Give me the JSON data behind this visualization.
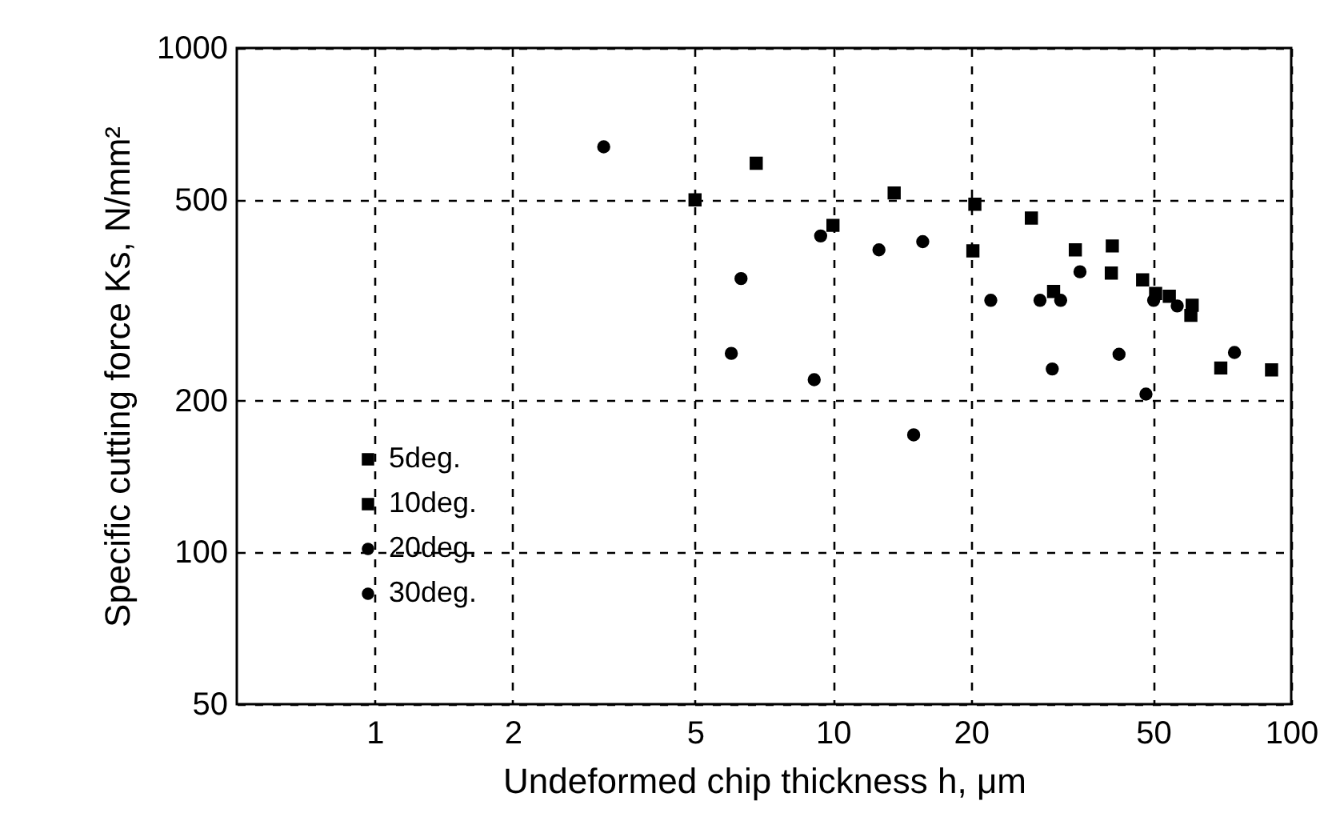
{
  "chart_data": {
    "type": "scatter",
    "xlabel": "Undeformed chip thickness  h, μm",
    "ylabel": "Specific cutting force  Ks, N/mm²",
    "log": "xy",
    "xlim": [
      0.5,
      100
    ],
    "ylim": [
      50,
      1000
    ],
    "xticks": [
      1,
      2,
      5,
      10,
      20,
      50,
      100
    ],
    "yticks": [
      50,
      100,
      200,
      500,
      1000
    ],
    "grid": true,
    "legend": "bottom left",
    "series": [
      {
        "name": "5deg.",
        "color": "#000000",
        "marker": "square",
        "x": [
          6.8,
          13.6,
          20.4,
          27.1,
          33.8,
          40.7,
          47.4,
          54.2,
          60.8
        ],
        "values": [
          591,
          516,
          490,
          460,
          398,
          405,
          347,
          322,
          309
        ]
      },
      {
        "name": "10deg.",
        "color": "#000000",
        "marker": "square",
        "x": [
          5,
          10,
          20.2,
          30.3,
          40.5,
          50.6,
          60.4,
          70.2,
          90.6
        ],
        "values": [
          500,
          445,
          396,
          329,
          358,
          326,
          295,
          232,
          230
        ]
      },
      {
        "name": "20deg.",
        "color": "#000000",
        "marker": "circle",
        "x": [
          3.16,
          6.3,
          9.4,
          12.6,
          15.7,
          22.1,
          28.3,
          31.4,
          34.6,
          50.1,
          56.4,
          75.2
        ],
        "values": [
          637,
          349,
          424,
          398,
          413,
          316,
          316,
          316,
          360,
          316,
          308,
          249
        ]
      },
      {
        "name": "30deg.",
        "color": "#000000",
        "marker": "circle",
        "x": [
          6.0,
          9.1,
          15.0,
          30.1,
          42.1,
          48.2
        ],
        "values": [
          248,
          220,
          171,
          231,
          247,
          206
        ]
      }
    ]
  }
}
